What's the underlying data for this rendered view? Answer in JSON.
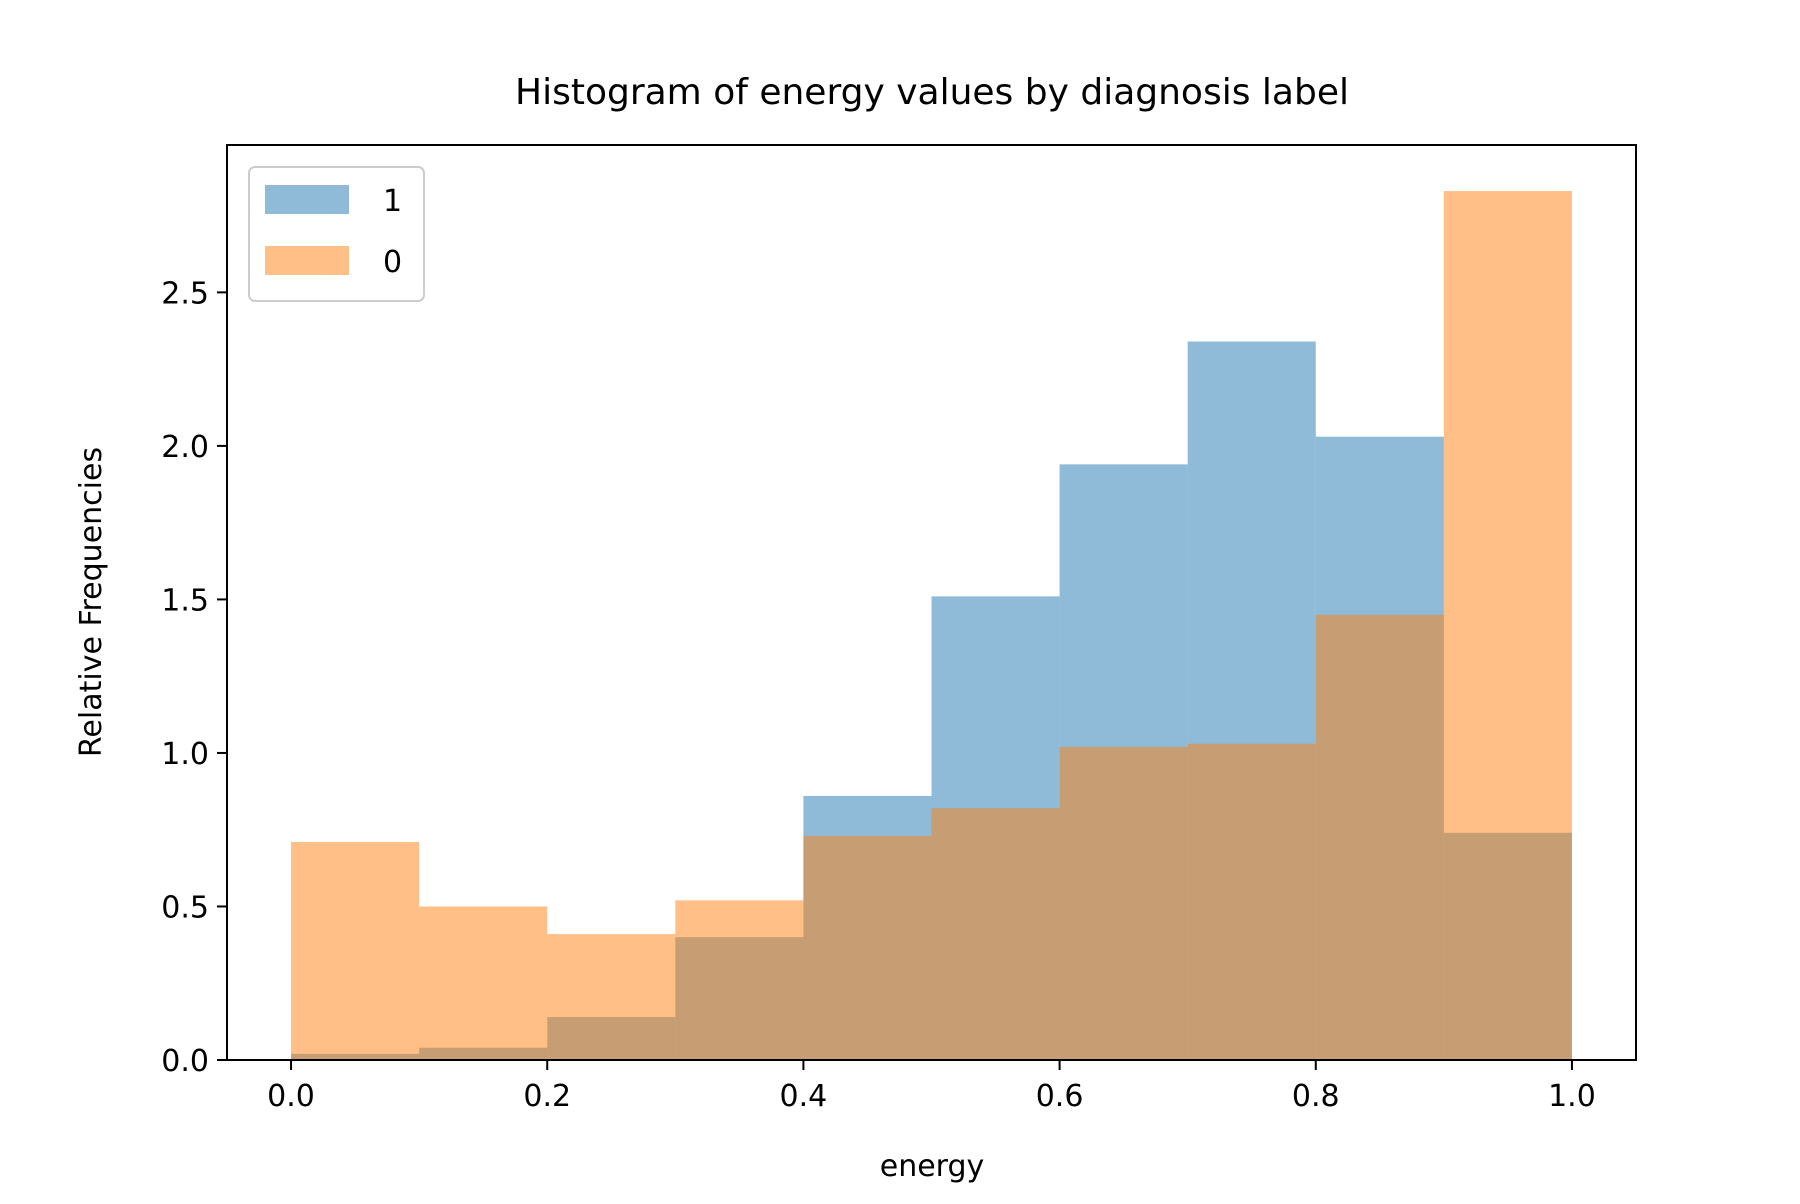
{
  "chart_data": {
    "type": "bar",
    "subtype": "overlaid-histogram",
    "title": "Histogram of energy values by diagnosis label",
    "xlabel": "energy",
    "ylabel": "Relative Frequencies",
    "xlim": [
      -0.05,
      1.05
    ],
    "ylim": [
      0,
      2.98
    ],
    "xticks": [
      0.0,
      0.2,
      0.4,
      0.6,
      0.8,
      1.0
    ],
    "xtick_labels": [
      "0.0",
      "0.2",
      "0.4",
      "0.6",
      "0.8",
      "1.0"
    ],
    "yticks": [
      0.0,
      0.5,
      1.0,
      1.5,
      2.0,
      2.5
    ],
    "ytick_labels": [
      "0.0",
      "0.5",
      "1.0",
      "1.5",
      "2.0",
      "2.5"
    ],
    "bin_edges": [
      0.0,
      0.1,
      0.2,
      0.3,
      0.4,
      0.5,
      0.6,
      0.7,
      0.8,
      0.9,
      1.0
    ],
    "series": [
      {
        "name": "1",
        "color": "#1f77b4",
        "alpha": 0.5,
        "values": [
          0.02,
          0.04,
          0.14,
          0.4,
          0.86,
          1.51,
          1.94,
          2.34,
          2.03,
          0.74
        ]
      },
      {
        "name": "0",
        "color": "#ff7f0e",
        "alpha": 0.5,
        "values": [
          0.71,
          0.5,
          0.41,
          0.52,
          0.73,
          0.82,
          1.02,
          1.03,
          1.45,
          2.83
        ]
      }
    ],
    "legend": {
      "position": "top-left"
    },
    "grid": false
  }
}
